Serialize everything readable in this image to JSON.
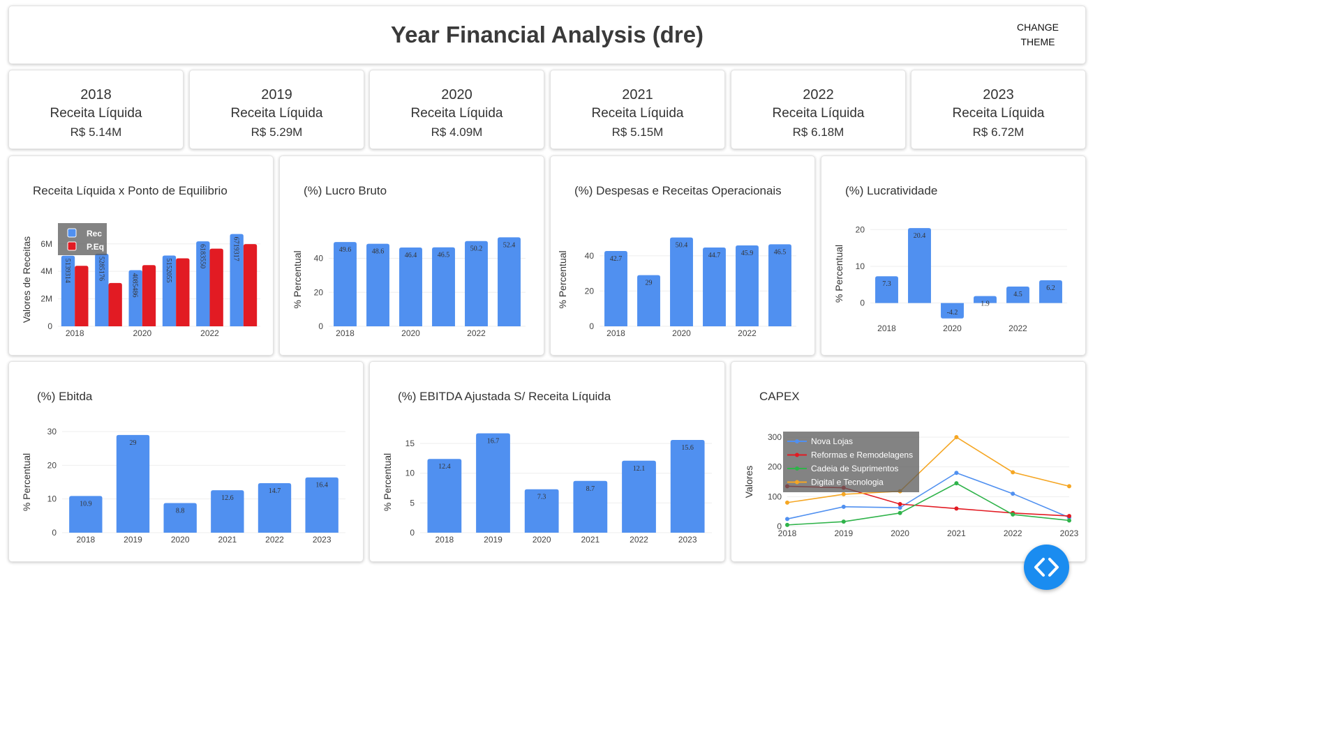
{
  "header": {
    "title": "Year Financial Analysis (dre)",
    "theme_button_label": "CHANGE\nTHEME"
  },
  "kpis": [
    {
      "year": "2018",
      "label": "Receita Líquida",
      "value": "R$ 5.14M"
    },
    {
      "year": "2019",
      "label": "Receita Líquida",
      "value": "R$ 5.29M"
    },
    {
      "year": "2020",
      "label": "Receita Líquida",
      "value": "R$ 4.09M"
    },
    {
      "year": "2021",
      "label": "Receita Líquida",
      "value": "R$ 5.15M"
    },
    {
      "year": "2022",
      "label": "Receita Líquida",
      "value": "R$ 6.18M"
    },
    {
      "year": "2023",
      "label": "Receita Líquida",
      "value": "R$ 6.72M"
    }
  ],
  "colors": {
    "blue": "#5090f0",
    "red": "#e21b23",
    "green": "#2fb34a",
    "orange": "#f5a623",
    "fab": "#1a8cf0"
  },
  "fab_icon": "code-icon",
  "chart_data": [
    {
      "type": "bar",
      "title": "Receita Líquida x Ponto de Equilibrio",
      "ylabel": "Valores de Receitas",
      "xlabel": "",
      "categories": [
        "2018",
        "2019",
        "2020",
        "2021",
        "2022",
        "2023"
      ],
      "x_ticks": [
        "2018",
        "2020",
        "2022"
      ],
      "y_ticks": [
        "0",
        "2M",
        "4M",
        "6M"
      ],
      "ylim": [
        0,
        6800000
      ],
      "series": [
        {
          "name": "Rec",
          "values": [
            5139314,
            5285176,
            4085486,
            5152055,
            6183550,
            6719317
          ],
          "labels": [
            "5139314",
            "5285176",
            "4085486",
            "5152055",
            "6183550",
            "6719317"
          ]
        },
        {
          "name": "P.Eq",
          "values": [
            4400000,
            3150000,
            4450000,
            4950000,
            5650000,
            5980000
          ]
        }
      ],
      "legend": "top-left"
    },
    {
      "type": "bar",
      "title": "(%) Lucro Bruto",
      "ylabel": "% Percentual",
      "xlabel": "",
      "categories": [
        "2018",
        "2019",
        "2020",
        "2021",
        "2022",
        "2023"
      ],
      "x_ticks": [
        "2018",
        "2020",
        "2022"
      ],
      "y_ticks": [
        "0",
        "20",
        "40"
      ],
      "ylim": [
        0,
        55
      ],
      "values": [
        49.6,
        48.6,
        46.4,
        46.5,
        50.2,
        52.4
      ]
    },
    {
      "type": "bar",
      "title": "(%) Despesas e Receitas Operacionais",
      "ylabel": "% Percentual",
      "xlabel": "",
      "categories": [
        "2018",
        "2019",
        "2020",
        "2021",
        "2022",
        "2023"
      ],
      "x_ticks": [
        "2018",
        "2020",
        "2022"
      ],
      "y_ticks": [
        "0",
        "20",
        "40"
      ],
      "ylim": [
        0,
        53
      ],
      "values": [
        42.7,
        29,
        50.4,
        44.7,
        45.9,
        46.5
      ]
    },
    {
      "type": "bar",
      "title": "(%) Lucratividade",
      "ylabel": "% Percentual",
      "xlabel": "",
      "categories": [
        "2018",
        "2019",
        "2020",
        "2021",
        "2022",
        "2023"
      ],
      "x_ticks": [
        "2018",
        "2020",
        "2022"
      ],
      "y_ticks": [
        "0",
        "10",
        "20"
      ],
      "ylim": [
        -5,
        21
      ],
      "values": [
        7.3,
        20.4,
        -4.2,
        1.9,
        4.5,
        6.2
      ]
    },
    {
      "type": "bar",
      "title": "(%) Ebitda",
      "ylabel": "% Percentual",
      "xlabel": "",
      "categories": [
        "2018",
        "2019",
        "2020",
        "2021",
        "2022",
        "2023"
      ],
      "x_ticks": [
        "2018",
        "2019",
        "2020",
        "2021",
        "2022",
        "2023"
      ],
      "y_ticks": [
        "0",
        "10",
        "20",
        "30"
      ],
      "ylim": [
        0,
        30
      ],
      "values": [
        10.9,
        29,
        8.8,
        12.6,
        14.7,
        16.4
      ]
    },
    {
      "type": "bar",
      "title": "(%) EBITDA Ajustada S/ Receita Líquida",
      "ylabel": "% Percentual",
      "xlabel": "",
      "categories": [
        "2018",
        "2019",
        "2020",
        "2021",
        "2022",
        "2023"
      ],
      "x_ticks": [
        "2018",
        "2019",
        "2020",
        "2021",
        "2022",
        "2023"
      ],
      "y_ticks": [
        "0",
        "5",
        "10",
        "15"
      ],
      "ylim": [
        0,
        17
      ],
      "values": [
        12.4,
        16.7,
        7.3,
        8.7,
        12.1,
        15.6
      ]
    },
    {
      "type": "line",
      "title": "CAPEX",
      "ylabel": "Valores",
      "xlabel": "",
      "categories": [
        "2018",
        "2019",
        "2020",
        "2021",
        "2022",
        "2023"
      ],
      "x_ticks": [
        "2018",
        "2019",
        "2020",
        "2021",
        "2022",
        "2023"
      ],
      "y_ticks": [
        "0",
        "100",
        "200",
        "300"
      ],
      "ylim": [
        0,
        300
      ],
      "series": [
        {
          "name": "Nova Lojas",
          "color": "#5090f0",
          "values": [
            25,
            66,
            63,
            180,
            110,
            30
          ]
        },
        {
          "name": "Reformas e Remodelagens",
          "color": "#e21b23",
          "values": [
            135,
            130,
            75,
            60,
            45,
            35
          ]
        },
        {
          "name": "Cadeia de Suprimentos",
          "color": "#2fb34a",
          "values": [
            5,
            16,
            45,
            145,
            40,
            20
          ]
        },
        {
          "name": "Digital e Tecnologia",
          "color": "#f5a623",
          "values": [
            80,
            108,
            118,
            300,
            182,
            135
          ]
        }
      ],
      "legend": "top-left"
    }
  ]
}
